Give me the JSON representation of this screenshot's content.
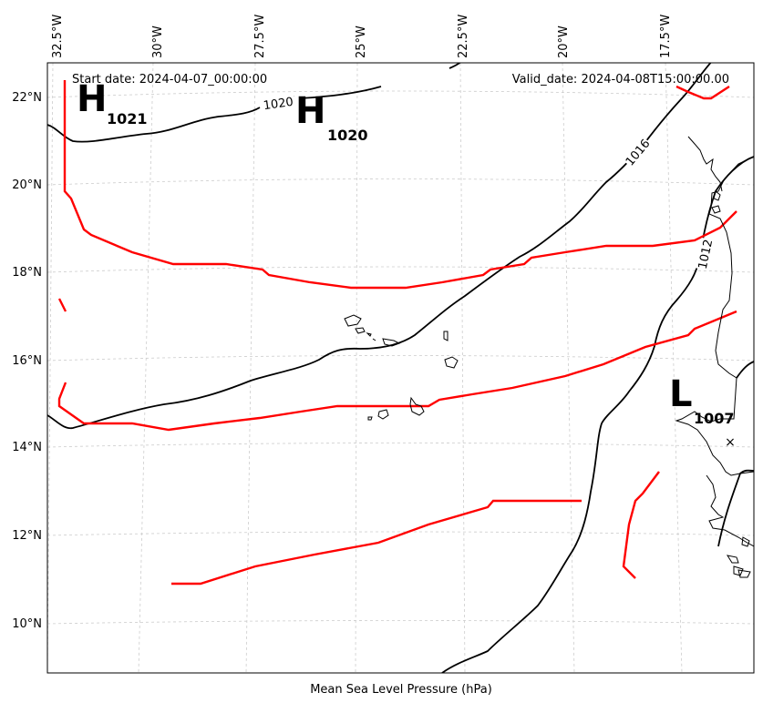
{
  "map": {
    "start_label": "Start date: 2024-04-07_00:00:00",
    "valid_label": "Valid_date: 2024-04-08T15:00:00.00",
    "caption": "Mean Sea Level Pressure (hPa)",
    "lon_ticks": [
      "32.5°W",
      "30°W",
      "27.5°W",
      "25°W",
      "22.5°W",
      "20°W",
      "17.5°W"
    ],
    "lat_ticks": [
      "22°N",
      "20°N",
      "18°N",
      "16°N",
      "14°N",
      "12°N",
      "10°N"
    ],
    "pressure_systems": [
      {
        "type": "H",
        "value": "1021"
      },
      {
        "type": "H",
        "value": "1020"
      },
      {
        "type": "L",
        "value": "1007"
      }
    ],
    "isobar_labels": [
      "1020",
      "1016",
      "1012"
    ],
    "colors": {
      "isobar": "#000000",
      "front": "#ff0000",
      "grid": "#cccccc"
    }
  }
}
